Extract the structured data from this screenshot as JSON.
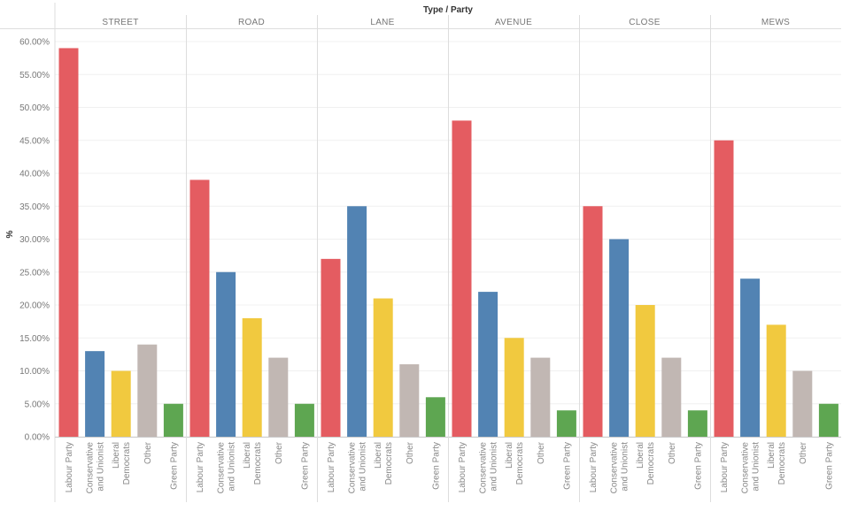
{
  "chart_data": {
    "type": "bar",
    "title": "Type / Party",
    "ylabel": "%",
    "ylim": [
      0,
      61
    ],
    "yticks": [
      0,
      5,
      10,
      15,
      20,
      25,
      30,
      35,
      40,
      45,
      50,
      55,
      60
    ],
    "ytick_labels": [
      "0.00%",
      "5.00%",
      "10.00%",
      "15.00%",
      "20.00%",
      "25.00%",
      "30.00%",
      "35.00%",
      "40.00%",
      "45.00%",
      "50.00%",
      "55.00%",
      "60.00%"
    ],
    "grid": true,
    "parties": [
      {
        "name": "Labour Party",
        "lines": [
          "Labour Party"
        ],
        "color": "#e45c61"
      },
      {
        "name": "Conservative and Unionist",
        "lines": [
          "Conservative",
          "and Unionist"
        ],
        "color": "#5283b3"
      },
      {
        "name": "Liberal Democrats",
        "lines": [
          "Liberal",
          "Democrats"
        ],
        "color": "#f1c93f"
      },
      {
        "name": "Other",
        "lines": [
          "Other"
        ],
        "color": "#c1b7b3"
      },
      {
        "name": "Green Party",
        "lines": [
          "Green Party"
        ],
        "color": "#5ea651"
      }
    ],
    "panels": [
      {
        "name": "STREET",
        "values": [
          59,
          13,
          10,
          14,
          5
        ]
      },
      {
        "name": "ROAD",
        "values": [
          39,
          25,
          18,
          12,
          5
        ]
      },
      {
        "name": "LANE",
        "values": [
          27,
          35,
          21,
          11,
          6
        ]
      },
      {
        "name": "AVENUE",
        "values": [
          48,
          22,
          15,
          12,
          4
        ]
      },
      {
        "name": "CLOSE",
        "values": [
          35,
          30,
          20,
          12,
          4
        ]
      },
      {
        "name": "MEWS",
        "values": [
          45,
          24,
          17,
          10,
          5
        ]
      }
    ]
  }
}
